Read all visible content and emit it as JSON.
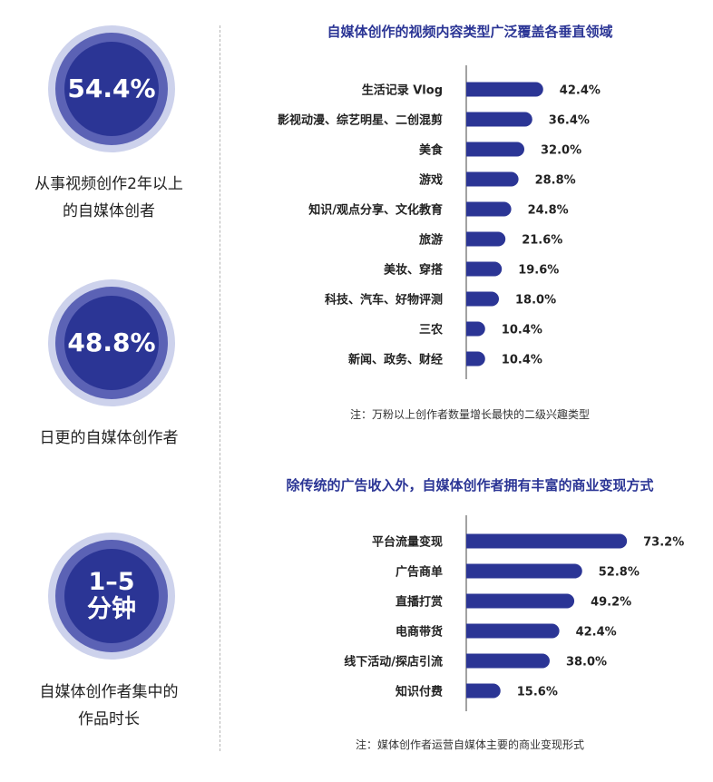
{
  "stats": [
    {
      "value": "54.4%",
      "caption_line1": "从事视频创作2年以上",
      "caption_line2": "的自媒体创者"
    },
    {
      "value": "48.8%",
      "caption_line1": "日更的自媒体创作者",
      "caption_line2": ""
    },
    {
      "value_line1": "1–5",
      "value_line2": "分钟",
      "caption_line1": "自媒体创作者集中的",
      "caption_line2": "作品时长"
    }
  ],
  "chart_data": [
    {
      "type": "bar",
      "orientation": "horizontal",
      "title": "自媒体创作的视频内容类型广泛覆盖各垂直领域",
      "note": "注：万粉以上创作者数量增长最快的二级兴趣类型",
      "categories": [
        "生活记录 Vlog",
        "影视动漫、综艺明星、二创混剪",
        "美食",
        "游戏",
        "知识/观点分享、文化教育",
        "旅游",
        "美妆、穿搭",
        "科技、汽车、好物评测",
        "三农",
        "新闻、政务、财经"
      ],
      "values": [
        42.4,
        36.4,
        32.0,
        28.8,
        24.8,
        21.6,
        19.6,
        18.0,
        10.4,
        10.4
      ],
      "value_labels": [
        "42.4%",
        "36.4%",
        "32.0%",
        "28.8%",
        "24.8%",
        "21.6%",
        "19.6%",
        "18.0%",
        "10.4%",
        "10.4%"
      ],
      "xlim": [
        0,
        100
      ],
      "grid": false,
      "bar_color": "#2b3595"
    },
    {
      "type": "bar",
      "orientation": "horizontal",
      "title": "除传统的广告收入外，自媒体创作者拥有丰富的商业变现方式",
      "note": "注：媒体创作者运营自媒体主要的商业变现形式",
      "categories": [
        "平台流量变现",
        "广告商单",
        "直播打赏",
        "电商带货",
        "线下活动/探店引流",
        "知识付费"
      ],
      "values": [
        73.2,
        52.8,
        49.2,
        42.4,
        38.0,
        15.6
      ],
      "value_labels": [
        "73.2%",
        "52.8%",
        "49.2%",
        "42.4%",
        "38.0%",
        "15.6%"
      ],
      "xlim": [
        0,
        100
      ],
      "grid": false,
      "bar_color": "#2b3595"
    }
  ]
}
